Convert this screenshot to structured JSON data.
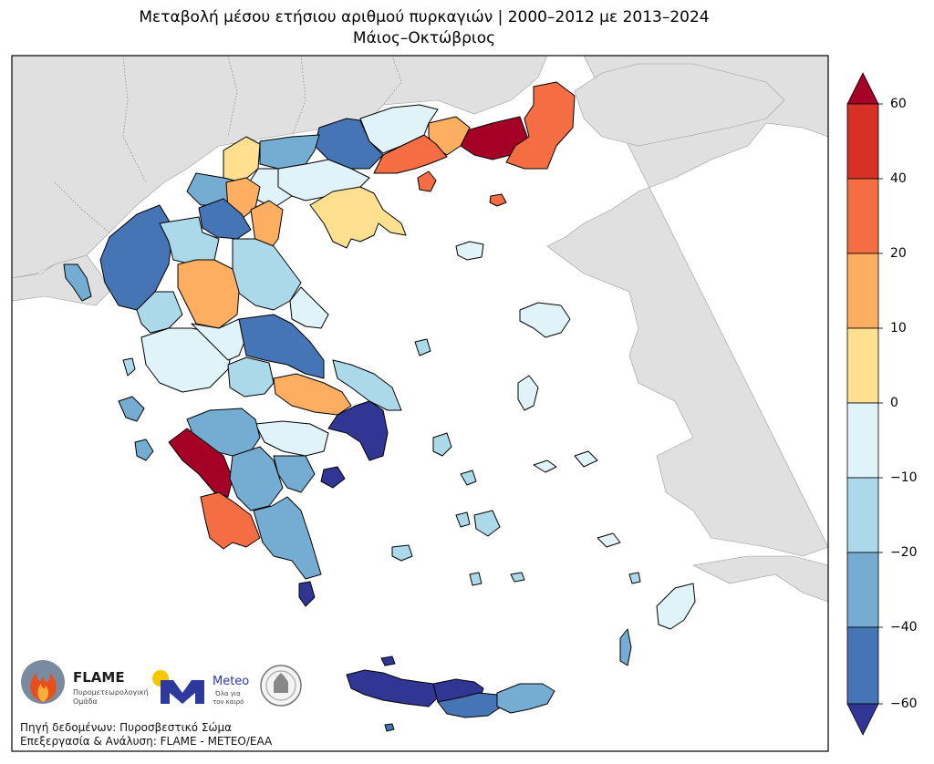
{
  "title_line1": "Μεταβολή μέσου ετήσιου αριθμού πυρκαγιών | 2000–2012 με 2013–2024",
  "title_line2": "Μάιος–Οκτώβριος",
  "colorbar": {
    "ticks": [
      "60",
      "40",
      "20",
      "10",
      "0",
      "−10",
      "−20",
      "−40",
      "−60"
    ],
    "bins": [
      {
        "range": [
          40,
          60
        ],
        "color": "#d73027"
      },
      {
        "range": [
          20,
          40
        ],
        "color": "#f46d43"
      },
      {
        "range": [
          10,
          20
        ],
        "color": "#fdae61"
      },
      {
        "range": [
          0,
          10
        ],
        "color": "#fee090"
      },
      {
        "range": [
          -10,
          0
        ],
        "color": "#e0f3f8"
      },
      {
        "range": [
          -20,
          -10
        ],
        "color": "#abd9e9"
      },
      {
        "range": [
          -40,
          -20
        ],
        "color": "#74add1"
      },
      {
        "range": [
          -60,
          -40
        ],
        "color": "#4575b4"
      }
    ],
    "extend_max_color": "#a50026",
    "extend_min_color": "#313695"
  },
  "colors": {
    "sea": "#ffffff",
    "neighbor_land": "#e0e0e0",
    "border": "#000000"
  },
  "logos": {
    "flame_name": "FLAME",
    "flame_sub1": "Πυρομετεωρολογική",
    "flame_sub2": "Ομάδα",
    "meteo_name": "Meteo",
    "meteo_sub1": "Όλα για",
    "meteo_sub2": "τον καιρό"
  },
  "source_line1": "Πηγή δεδομένων: Πυροσβεστικό Σώμα",
  "source_line2": "Επεξεργασία & Ανάλυση: FLAME - METEO/EAA"
}
